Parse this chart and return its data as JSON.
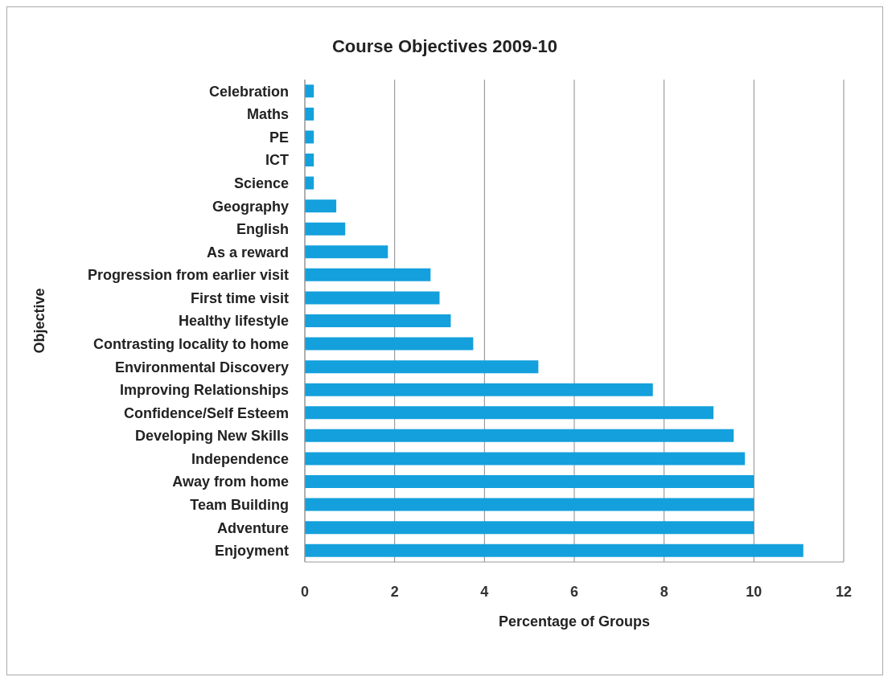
{
  "chart_data": {
    "type": "bar",
    "orientation": "horizontal",
    "title": "Course Objectives 2009-10",
    "xlabel": "Percentage of Groups",
    "ylabel": "Objective",
    "categories": [
      "Celebration",
      "Maths",
      "PE",
      "ICT",
      "Science",
      "Geography",
      "English",
      "As a reward",
      "Progression from earlier visit",
      "First time visit",
      "Healthy lifestyle",
      "Contrasting locality to home",
      "Environmental Discovery",
      "Improving Relationships",
      "Confidence/Self Esteem",
      "Developing New Skills",
      "Independence",
      "Away from home",
      "Team Building",
      "Adventure",
      "Enjoyment"
    ],
    "values": [
      0.2,
      0.2,
      0.2,
      0.2,
      0.2,
      0.7,
      0.9,
      1.85,
      2.8,
      3.0,
      3.25,
      3.75,
      5.2,
      7.75,
      9.1,
      9.55,
      9.8,
      10,
      10,
      10,
      11.1
    ],
    "color": "#14a0dc",
    "xlim": [
      0,
      12
    ],
    "xticks": [
      0,
      2,
      4,
      6,
      8,
      10,
      12
    ],
    "grid": "x"
  }
}
